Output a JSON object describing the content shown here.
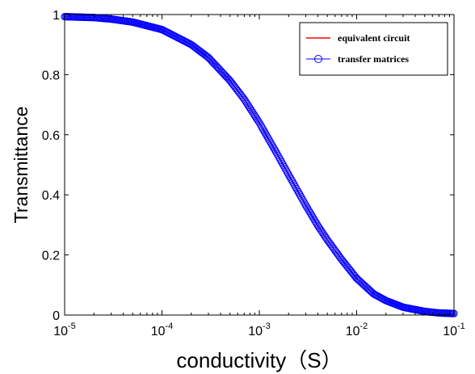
{
  "chart_data": {
    "type": "line",
    "xlabel": "conductivity（S）",
    "ylabel": "Transmittance",
    "xscale": "log",
    "xlim": [
      1e-05,
      0.1
    ],
    "ylim": [
      0,
      1
    ],
    "x_ticks": [
      {
        "base": "10",
        "exp": "-5"
      },
      {
        "base": "10",
        "exp": "-4"
      },
      {
        "base": "10",
        "exp": "-3"
      },
      {
        "base": "10",
        "exp": "-2"
      },
      {
        "base": "10",
        "exp": "-1"
      }
    ],
    "y_ticks": [
      "0",
      "0.2",
      "0.4",
      "0.6",
      "0.8",
      "1"
    ],
    "grid": false,
    "legend_position": "top-right",
    "series": [
      {
        "name": "equivalent circuit",
        "style": "line",
        "color": "#ff0000",
        "x": [
          1e-05,
          2e-05,
          3e-05,
          5e-05,
          0.0001,
          0.0002,
          0.0003,
          0.0005,
          0.0007,
          0.001,
          0.0015,
          0.002,
          0.003,
          0.004,
          0.005,
          0.007,
          0.01,
          0.015,
          0.02,
          0.03,
          0.05,
          0.07,
          0.1
        ],
        "y": [
          0.993,
          0.99,
          0.985,
          0.975,
          0.95,
          0.9,
          0.857,
          0.78,
          0.718,
          0.64,
          0.54,
          0.467,
          0.365,
          0.297,
          0.25,
          0.185,
          0.122,
          0.07,
          0.048,
          0.026,
          0.012,
          0.007,
          0.005
        ]
      },
      {
        "name": "transfer matrices",
        "style": "line-circle",
        "color": "#0000ff",
        "marker_count": 420,
        "x": [
          1e-05,
          2e-05,
          3e-05,
          5e-05,
          0.0001,
          0.0002,
          0.0003,
          0.0005,
          0.0007,
          0.001,
          0.0015,
          0.002,
          0.003,
          0.004,
          0.005,
          0.007,
          0.01,
          0.015,
          0.02,
          0.03,
          0.05,
          0.07,
          0.1
        ],
        "y": [
          0.993,
          0.99,
          0.985,
          0.975,
          0.95,
          0.9,
          0.857,
          0.78,
          0.718,
          0.64,
          0.54,
          0.467,
          0.365,
          0.297,
          0.25,
          0.185,
          0.122,
          0.07,
          0.048,
          0.026,
          0.012,
          0.007,
          0.005
        ]
      }
    ]
  }
}
